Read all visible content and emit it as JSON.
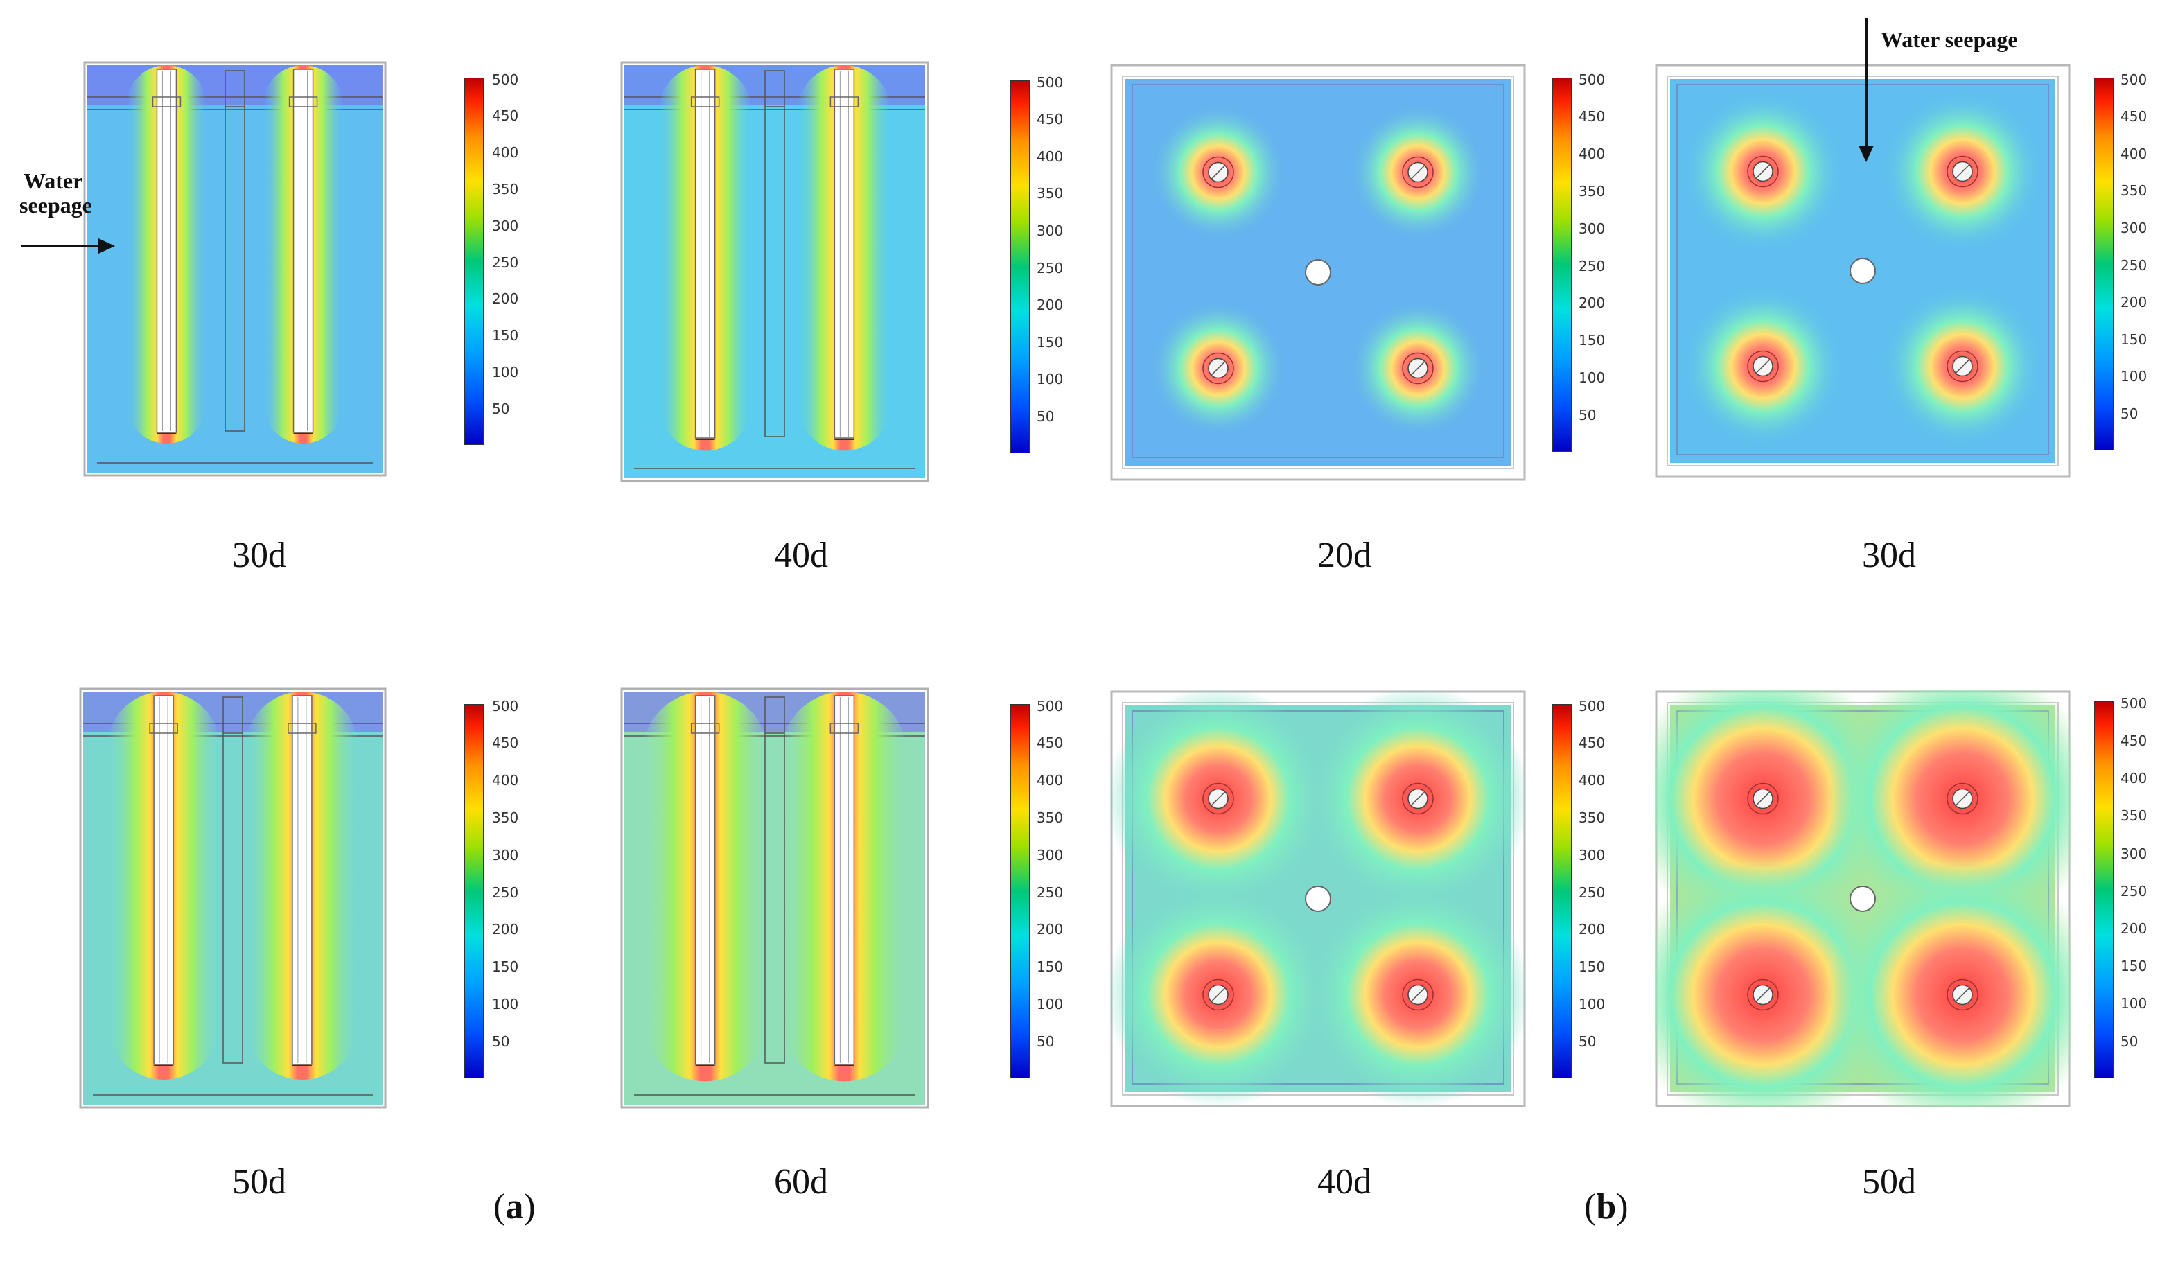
{
  "panels": [
    {
      "caption": "30d",
      "view": "side",
      "stage": 0.3
    },
    {
      "caption": "40d",
      "view": "side",
      "stage": 0.42
    },
    {
      "caption": "20d",
      "view": "top",
      "stage": 0.2
    },
    {
      "caption": "30d",
      "view": "top",
      "stage": 0.3
    },
    {
      "caption": "50d",
      "view": "side",
      "stage": 0.6
    },
    {
      "caption": "60d",
      "view": "side",
      "stage": 0.72
    },
    {
      "caption": "40d",
      "view": "top",
      "stage": 0.62
    },
    {
      "caption": "50d",
      "view": "top",
      "stage": 0.85
    }
  ],
  "colorbar": {
    "ticks": [
      "500",
      "450",
      "400",
      "350",
      "300",
      "250",
      "200",
      "150",
      "100",
      "50"
    ],
    "colors": [
      "#0000c8",
      "#0050ff",
      "#00a0ff",
      "#00e0e0",
      "#00c878",
      "#a0e000",
      "#ffe000",
      "#ff9000",
      "#ff2000",
      "#c00000"
    ]
  },
  "annotations": {
    "left_seepage": "Water seepage",
    "left_line1": "Water",
    "left_line2": "seepage",
    "top_seepage": "Water seepage"
  },
  "subfigures": {
    "a": {
      "open": "(",
      "letter": "a",
      "close": ")"
    },
    "b": {
      "open": "(",
      "letter": "b",
      "close": ")"
    }
  }
}
